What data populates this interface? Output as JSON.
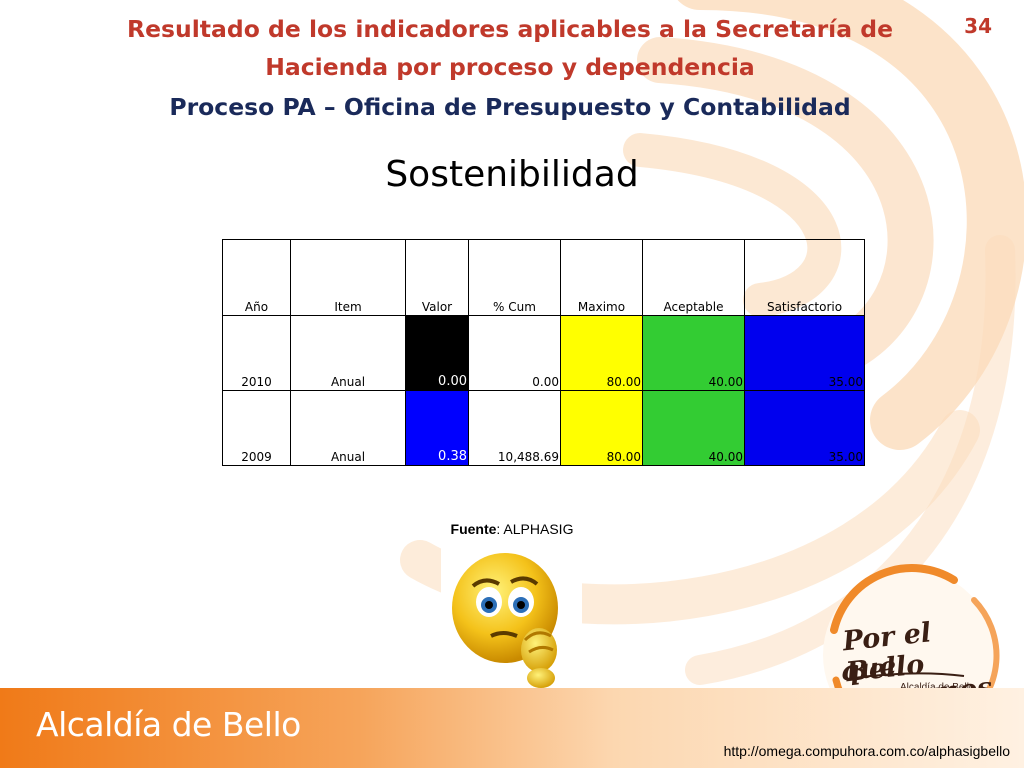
{
  "header": {
    "title_line1": "Resultado de los indicadores aplicables a la Secretaría de",
    "title_line2": "Hacienda por proceso y dependencia",
    "subtitle": "Proceso PA – Oficina de Presupuesto y Contabilidad",
    "page_number": "34"
  },
  "section_title": "Sostenibilidad",
  "table": {
    "headers": [
      "Año",
      "Item",
      "Valor",
      "% Cum",
      "Maximo",
      "Aceptable",
      "Satisfactorio"
    ],
    "rows": [
      {
        "anio": "2010",
        "item": "Anual",
        "valor": "0.00",
        "cum": "0.00",
        "maximo": "80.00",
        "aceptable": "40.00",
        "satisfactorio": "35.00",
        "valor_color": "#000000",
        "valor_text_color": "#ffffff"
      },
      {
        "anio": "2009",
        "item": "Anual",
        "valor": "0.38",
        "cum": "10,488.69",
        "maximo": "80.00",
        "aceptable": "40.00",
        "satisfactorio": "35.00",
        "valor_color": "#0000ff",
        "valor_text_color": "#ffffff"
      }
    ],
    "colors": {
      "maximo": "#ffff00",
      "aceptable": "#33cc33",
      "satisfactorio": "#0000ee"
    }
  },
  "fuente": {
    "label": "Fuente",
    "value": ": ALPHASIG"
  },
  "emoji_icon": "thinking-face-icon",
  "logo": {
    "line1": "Por el Bello",
    "line2": "que queremos",
    "sub": "Alcaldía de Bello"
  },
  "footer": {
    "brand": "Alcaldía de Bello",
    "url": "http://omega.compuhora.com.co/alphasigbello"
  }
}
